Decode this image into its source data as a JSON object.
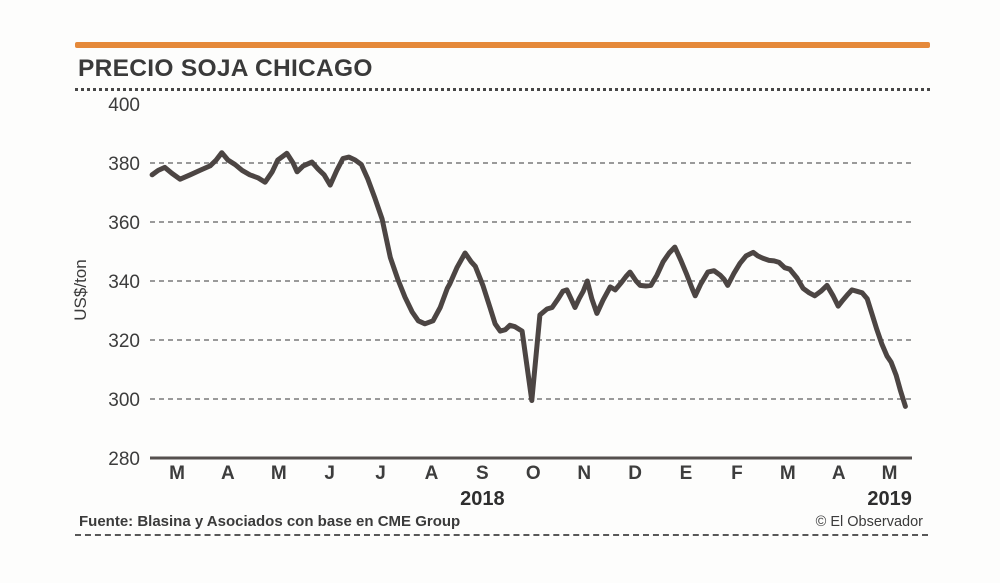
{
  "header": {
    "title": "PRECIO SOJA CHICAGO",
    "accent_color": "#e5893a"
  },
  "footer": {
    "source": "Fuente: Blasina y Asociados con base en CME Group",
    "copyright": "© El Observador"
  },
  "chart_data": {
    "type": "line",
    "title": "PRECIO SOJA CHICAGO",
    "xlabel": "",
    "ylabel": "US$/ton",
    "x_labels": [
      "M",
      "A",
      "M",
      "J",
      "J",
      "A",
      "S",
      "O",
      "N",
      "D",
      "E",
      "F",
      "M",
      "A",
      "M"
    ],
    "year_labels": [
      {
        "label": "2018",
        "position": 6
      },
      {
        "label": "2019",
        "position": 14
      }
    ],
    "yticks": [
      280,
      300,
      320,
      340,
      360,
      380,
      400
    ],
    "ylim": [
      280,
      400
    ],
    "grid": "dashed-horizontal",
    "legend": "none",
    "series_name": "Precio soja Chicago (US$/ton)",
    "series_color": "#4c4543",
    "points": [
      [
        -0.49,
        376
      ],
      [
        -0.37,
        377.5
      ],
      [
        -0.24,
        378.5
      ],
      [
        -0.1,
        376.5
      ],
      [
        0.06,
        374.5
      ],
      [
        0.26,
        376
      ],
      [
        0.45,
        377.5
      ],
      [
        0.65,
        379
      ],
      [
        0.77,
        381
      ],
      [
        0.88,
        383.5
      ],
      [
        1.0,
        381
      ],
      [
        1.14,
        379.5
      ],
      [
        1.28,
        377.5
      ],
      [
        1.43,
        376
      ],
      [
        1.59,
        375
      ],
      [
        1.73,
        373.5
      ],
      [
        1.87,
        377
      ],
      [
        1.98,
        381
      ],
      [
        2.16,
        383.3
      ],
      [
        2.28,
        380
      ],
      [
        2.36,
        377
      ],
      [
        2.48,
        379
      ],
      [
        2.65,
        380.3
      ],
      [
        2.77,
        378
      ],
      [
        2.89,
        376
      ],
      [
        3.01,
        372.5
      ],
      [
        3.14,
        377.5
      ],
      [
        3.26,
        381.5
      ],
      [
        3.38,
        382
      ],
      [
        3.5,
        381
      ],
      [
        3.62,
        379.5
      ],
      [
        3.75,
        374.5
      ],
      [
        3.89,
        368
      ],
      [
        4.03,
        361
      ],
      [
        4.19,
        348
      ],
      [
        4.34,
        340.5
      ],
      [
        4.48,
        334.5
      ],
      [
        4.62,
        329.5
      ],
      [
        4.74,
        326.5
      ],
      [
        4.87,
        325.5
      ],
      [
        5.03,
        326.5
      ],
      [
        5.17,
        331
      ],
      [
        5.31,
        337.5
      ],
      [
        5.36,
        339
      ],
      [
        5.5,
        344.5
      ],
      [
        5.66,
        349.5
      ],
      [
        5.78,
        346.5
      ],
      [
        5.86,
        345
      ],
      [
        6.01,
        338.5
      ],
      [
        6.15,
        331
      ],
      [
        6.25,
        325.5
      ],
      [
        6.35,
        323
      ],
      [
        6.45,
        323.5
      ],
      [
        6.54,
        325
      ],
      [
        6.64,
        324.5
      ],
      [
        6.78,
        323
      ],
      [
        6.97,
        299.5
      ],
      [
        7.13,
        328.5
      ],
      [
        7.27,
        330.5
      ],
      [
        7.37,
        331
      ],
      [
        7.49,
        334
      ],
      [
        7.58,
        336.5
      ],
      [
        7.66,
        337
      ],
      [
        7.74,
        334
      ],
      [
        7.82,
        331
      ],
      [
        7.9,
        334
      ],
      [
        7.98,
        336.5
      ],
      [
        8.06,
        340
      ],
      [
        8.15,
        334
      ],
      [
        8.25,
        329
      ],
      [
        8.37,
        333.5
      ],
      [
        8.51,
        338
      ],
      [
        8.61,
        337
      ],
      [
        8.73,
        339.5
      ],
      [
        8.82,
        341.5
      ],
      [
        8.9,
        343
      ],
      [
        9.02,
        340
      ],
      [
        9.1,
        338.5
      ],
      [
        9.21,
        338.3
      ],
      [
        9.31,
        338.5
      ],
      [
        9.43,
        342
      ],
      [
        9.55,
        346.5
      ],
      [
        9.67,
        349.5
      ],
      [
        9.78,
        351.5
      ],
      [
        9.9,
        347
      ],
      [
        10.02,
        342
      ],
      [
        10.12,
        337.5
      ],
      [
        10.18,
        335
      ],
      [
        10.29,
        339
      ],
      [
        10.43,
        343
      ],
      [
        10.55,
        343.5
      ],
      [
        10.67,
        342
      ],
      [
        10.75,
        340.5
      ],
      [
        10.82,
        338.5
      ],
      [
        10.94,
        342.5
      ],
      [
        11.06,
        346
      ],
      [
        11.18,
        348.5
      ],
      [
        11.32,
        349.7
      ],
      [
        11.41,
        348.5
      ],
      [
        11.51,
        347.7
      ],
      [
        11.63,
        347
      ],
      [
        11.73,
        346.8
      ],
      [
        11.83,
        346.3
      ],
      [
        11.94,
        344.5
      ],
      [
        12.04,
        344
      ],
      [
        12.18,
        341
      ],
      [
        12.3,
        337.5
      ],
      [
        12.42,
        336
      ],
      [
        12.53,
        335
      ],
      [
        12.65,
        336.5
      ],
      [
        12.77,
        338.5
      ],
      [
        12.89,
        335
      ],
      [
        12.99,
        331.5
      ],
      [
        13.08,
        333.5
      ],
      [
        13.18,
        335.5
      ],
      [
        13.26,
        337
      ],
      [
        13.36,
        336.5
      ],
      [
        13.46,
        336
      ],
      [
        13.56,
        334
      ],
      [
        13.65,
        329
      ],
      [
        13.75,
        323.5
      ],
      [
        13.85,
        318.5
      ],
      [
        13.95,
        314.5
      ],
      [
        14.03,
        312.5
      ],
      [
        14.13,
        308
      ],
      [
        14.21,
        303
      ],
      [
        14.31,
        297.5
      ]
    ]
  }
}
